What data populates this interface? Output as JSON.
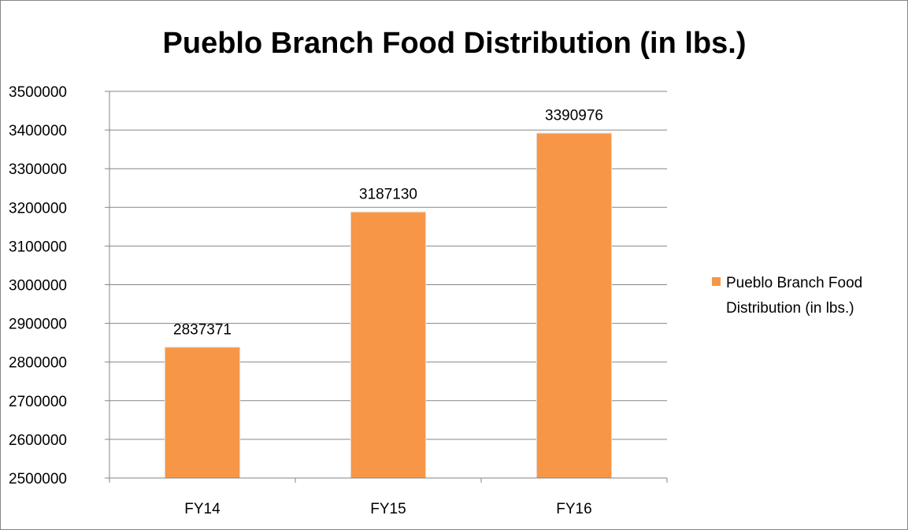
{
  "chart_data": {
    "type": "bar",
    "title": "Pueblo Branch Food Distribution (in lbs.)",
    "categories": [
      "FY14",
      "FY15",
      "FY16"
    ],
    "series": [
      {
        "name": "Pueblo Branch Food Distribution (in lbs.)",
        "legend_lines": [
          "Pueblo Branch Food",
          "Distribution (in lbs.)"
        ],
        "values": [
          2837371,
          3187130,
          3390976
        ],
        "color": "#f79646"
      }
    ],
    "ylim": [
      2500000,
      3500000
    ],
    "ytick_step": 100000,
    "yticks": [
      "2500000",
      "2600000",
      "2700000",
      "2800000",
      "2900000",
      "3000000",
      "3100000",
      "3200000",
      "3300000",
      "3400000",
      "3500000"
    ],
    "grid": true,
    "legend_position": "right",
    "xlabel": "",
    "ylabel": ""
  }
}
